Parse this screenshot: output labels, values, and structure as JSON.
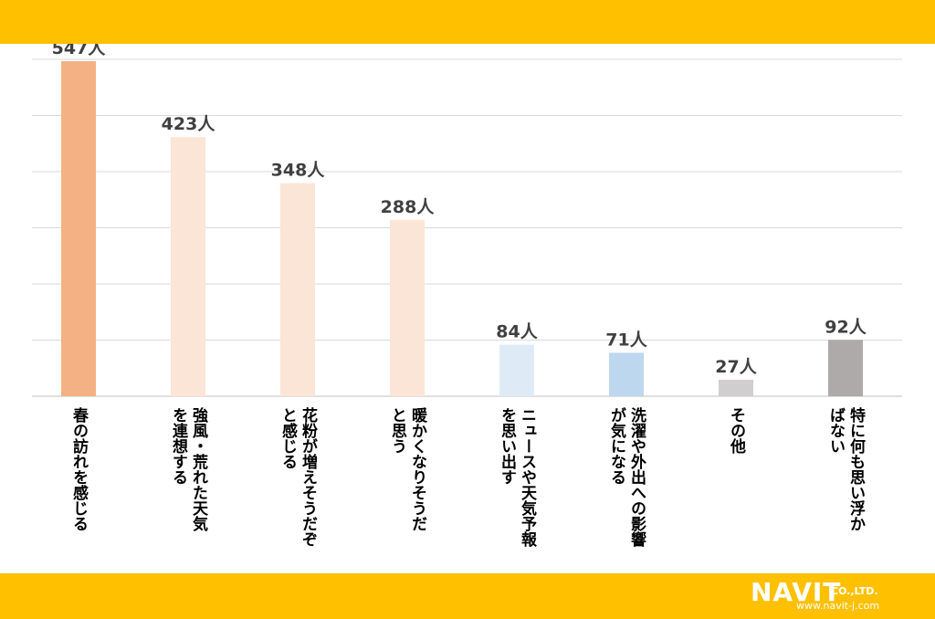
{
  "chart_data": {
    "type": "bar",
    "categories": [
      "春の訪れを感じる",
      "強風・荒れた天気を連想する",
      "花粉が増えそうだぞと感じる",
      "暖かくなりそうだと思う",
      "ニュースや天気予報を思い出す",
      "洗濯や外出への影響が気になる",
      "その他",
      "特に何も思い浮かばない"
    ],
    "category_lines": [
      [
        "春の訪れを感じる"
      ],
      [
        "強風・荒れた天気",
        "を連想する"
      ],
      [
        "花粉が増えそうだぞ",
        "と感じる"
      ],
      [
        "暖かくなりそうだ",
        "と思う"
      ],
      [
        "ニュースや天気予報",
        "を思い出す"
      ],
      [
        "洗濯や外出への影響",
        "が気になる"
      ],
      [
        "その他"
      ],
      [
        "特に何も思い浮か",
        "ばない"
      ]
    ],
    "values": [
      547,
      423,
      348,
      288,
      84,
      71,
      27,
      92
    ],
    "data_labels": [
      "547人",
      "423人",
      "348人",
      "288人",
      "84人",
      "71人",
      "27人",
      "92人"
    ],
    "ylim": [
      0,
      550
    ],
    "grid": true,
    "bar_colors": [
      "#F4B183",
      "#FBE5D6",
      "#FBE5D6",
      "#FBE5D6",
      "#DEEBF7",
      "#BDD7EE",
      "#D0CECE",
      "#AEAAAA"
    ]
  },
  "logo": {
    "main": "NAVIT",
    "company": "CO.,LTD.",
    "url": "www.navit-j.com"
  }
}
